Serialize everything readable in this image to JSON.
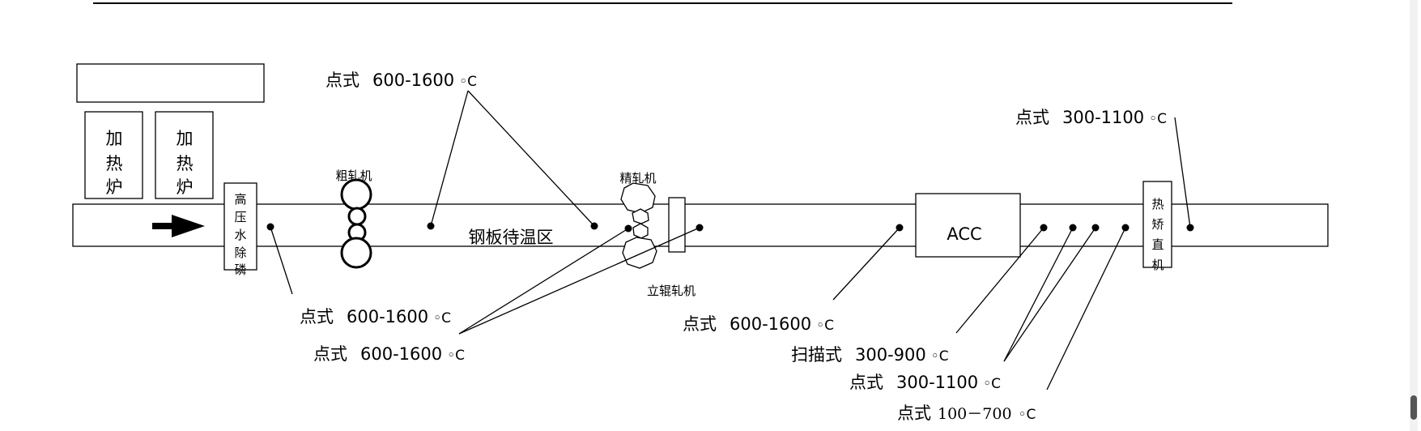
{
  "labels": {
    "furnace_char1": "加",
    "furnace_char2": "热",
    "furnace_char3": "炉",
    "descaler_chars": [
      "高",
      "压",
      "水",
      "除",
      "磷"
    ],
    "rough_mill": "粗轧机",
    "finish_mill": "精轧机",
    "edger": "立辊轧机",
    "waiting_zone": "钢板待温区",
    "acc": "ACC",
    "leveler_chars": [
      "热",
      "矫",
      "直",
      "机"
    ]
  },
  "callouts": [
    {
      "mode": "点式",
      "range": "600-1600",
      "unit": "◦C"
    },
    {
      "mode": "点式",
      "range": "300-1100",
      "unit": "◦C"
    },
    {
      "mode": "点式",
      "range": "600-1600",
      "unit": "◦C"
    },
    {
      "mode": "点式",
      "range": "600-1600",
      "unit": "◦C"
    },
    {
      "mode": "点式",
      "range": "600-1600",
      "unit": "◦C"
    },
    {
      "mode": "扫描式",
      "range": "300-900",
      "unit": "◦C"
    },
    {
      "mode": "点式",
      "range": "300-1100",
      "unit": "◦C"
    },
    {
      "mode": "点式",
      "range": "100－700",
      "unit": "◦C"
    }
  ]
}
